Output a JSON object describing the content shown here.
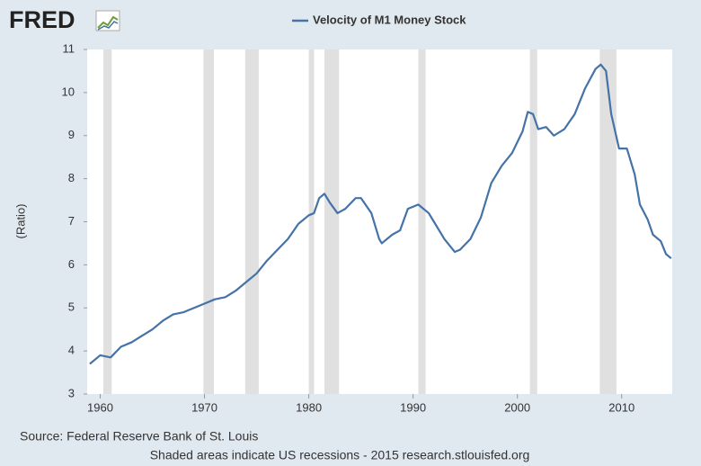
{
  "logo": "FRED",
  "chart_data": {
    "type": "line",
    "series": [
      {
        "name": "Velocity of M1 Money Stock",
        "color": "#4572a7",
        "values": [
          3.7,
          3.9,
          3.85,
          4.1,
          4.2,
          4.35,
          4.5,
          4.7,
          4.85,
          4.9,
          5.0,
          5.1,
          5.2,
          5.25,
          5.4,
          5.6,
          5.8,
          6.1,
          6.35,
          6.6,
          6.95,
          7.15,
          7.2,
          7.55,
          7.65,
          7.45,
          7.2,
          7.3,
          7.55,
          7.55,
          7.2,
          6.6,
          6.5,
          6.7,
          6.8,
          7.3,
          7.35,
          7.4,
          7.2,
          7.0,
          6.6,
          6.3,
          6.35,
          6.6,
          7.1,
          7.9,
          8.3,
          8.6,
          9.1,
          9.55,
          9.5,
          9.15,
          9.2,
          9.0,
          9.15,
          9.5,
          10.1,
          10.55,
          10.65,
          10.5,
          9.5,
          8.7,
          8.7,
          8.1,
          7.4,
          7.05,
          6.7,
          6.55,
          6.25,
          6.15
        ]
      }
    ],
    "x": [
      1959.0,
      1960.0,
      1961.0,
      1962.0,
      1963.0,
      1964.0,
      1965.0,
      1966.0,
      1967.0,
      1968.0,
      1969.0,
      1970.0,
      1971.0,
      1972.0,
      1973.0,
      1974.0,
      1975.0,
      1976.0,
      1977.0,
      1978.0,
      1979.0,
      1980.0,
      1980.5,
      1981.0,
      1981.5,
      1982.0,
      1982.75,
      1983.5,
      1984.5,
      1985.0,
      1986.0,
      1986.75,
      1987.0,
      1988.0,
      1988.75,
      1989.5,
      1990.0,
      1990.5,
      1991.5,
      1992.0,
      1993.0,
      1994.0,
      1994.5,
      1995.5,
      1996.5,
      1997.5,
      1998.5,
      1999.5,
      2000.5,
      2001.0,
      2001.5,
      2002.0,
      2002.75,
      2003.5,
      2004.5,
      2005.5,
      2006.5,
      2007.5,
      2008.0,
      2008.5,
      2009.0,
      2009.75,
      2010.5,
      2011.25,
      2011.75,
      2012.5,
      2013.0,
      2013.75,
      2014.25,
      2014.75
    ],
    "recessions": [
      [
        1960.3,
        1961.1
      ],
      [
        1969.9,
        1970.9
      ],
      [
        1973.9,
        1975.2
      ],
      [
        1980.0,
        1980.5
      ],
      [
        1981.5,
        1982.9
      ],
      [
        1990.5,
        1991.2
      ],
      [
        2001.2,
        2001.9
      ],
      [
        2007.9,
        2009.5
      ]
    ],
    "recession_color": "#e0e0e0",
    "ylabel": "(Ratio)",
    "xlim": [
      1958.75,
      2014.85
    ],
    "ylim": [
      3,
      11
    ],
    "xticks": [
      1960,
      1970,
      1980,
      1990,
      2000,
      2010
    ],
    "yticks": [
      3,
      4,
      5,
      6,
      7,
      8,
      9,
      10,
      11
    ],
    "source": "Source: Federal Reserve Bank of St. Louis",
    "note": "Shaded areas indicate US recessions - 2015 research.stlouisfed.org"
  }
}
